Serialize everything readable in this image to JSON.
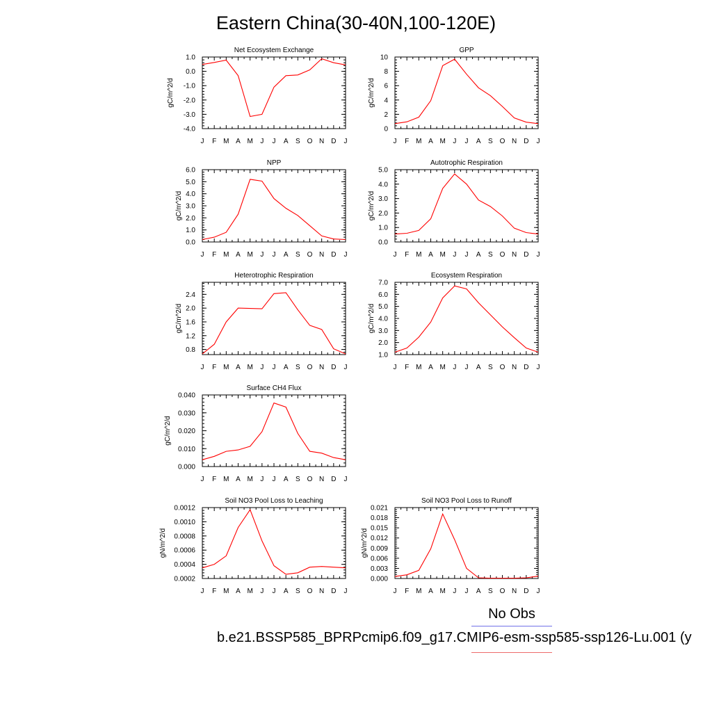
{
  "page": {
    "title": "Eastern China(30-40N,100-120E)",
    "legend": [
      {
        "label": "No Obs",
        "color": "#7070e8"
      },
      {
        "label": "b.e21.BSSP585_BPRPcmip6.f09_g17.CMIP6-esm-ssp585-ssp126-Lu.001 (y",
        "color": "#ee6a6a"
      }
    ]
  },
  "chart_data": [
    {
      "type": "line",
      "title": "Net Ecosystem Exchange",
      "ylabel": "gC/m^2/d",
      "categories": [
        "J",
        "F",
        "M",
        "A",
        "M",
        "J",
        "J",
        "A",
        "S",
        "O",
        "N",
        "D",
        "J"
      ],
      "ylim": [
        -4.0,
        1.0
      ],
      "yticks": [
        -4.0,
        -3.0,
        -2.0,
        -1.0,
        0.0,
        1.0
      ],
      "ytick_labels": [
        "-4.0",
        "-3.0",
        "-2.0",
        "-1.0",
        "0.0",
        "1.0"
      ],
      "series": [
        {
          "color": "#ff0000",
          "values": [
            0.48,
            0.62,
            0.78,
            -0.3,
            -3.15,
            -3.0,
            -1.1,
            -0.3,
            -0.25,
            0.1,
            0.88,
            0.6,
            0.45
          ]
        }
      ]
    },
    {
      "type": "line",
      "title": "GPP",
      "ylabel": "gC/m^2/d",
      "categories": [
        "J",
        "F",
        "M",
        "A",
        "M",
        "J",
        "J",
        "A",
        "S",
        "O",
        "N",
        "D",
        "J"
      ],
      "ylim": [
        0,
        10
      ],
      "yticks": [
        0,
        2,
        4,
        6,
        8,
        10
      ],
      "ytick_labels": [
        "0",
        "2",
        "4",
        "6",
        "8",
        "10"
      ],
      "series": [
        {
          "color": "#ff0000",
          "values": [
            0.7,
            0.95,
            1.6,
            3.9,
            8.8,
            9.7,
            7.6,
            5.7,
            4.6,
            3.1,
            1.5,
            0.9,
            0.7
          ]
        }
      ]
    },
    {
      "type": "line",
      "title": "NPP",
      "ylabel": "gC/m^2/d",
      "categories": [
        "J",
        "F",
        "M",
        "A",
        "M",
        "J",
        "J",
        "A",
        "S",
        "O",
        "N",
        "D",
        "J"
      ],
      "ylim": [
        0,
        6.0
      ],
      "yticks": [
        0,
        1,
        2,
        3,
        4,
        5,
        6
      ],
      "ytick_labels": [
        "0.0",
        "1.0",
        "2.0",
        "3.0",
        "4.0",
        "5.0",
        "6.0"
      ],
      "series": [
        {
          "color": "#ff0000",
          "values": [
            0.2,
            0.4,
            0.8,
            2.3,
            5.2,
            5.05,
            3.6,
            2.8,
            2.2,
            1.35,
            0.5,
            0.25,
            0.2
          ]
        }
      ]
    },
    {
      "type": "line",
      "title": "Autotrophic Respiration",
      "ylabel": "gC/m^2/d",
      "categories": [
        "J",
        "F",
        "M",
        "A",
        "M",
        "J",
        "J",
        "A",
        "S",
        "O",
        "N",
        "D",
        "J"
      ],
      "ylim": [
        0,
        5.0
      ],
      "yticks": [
        0,
        1,
        2,
        3,
        4,
        5
      ],
      "ytick_labels": [
        "0.0",
        "1.0",
        "2.0",
        "3.0",
        "4.0",
        "5.0"
      ],
      "series": [
        {
          "color": "#ff0000",
          "values": [
            0.55,
            0.6,
            0.8,
            1.6,
            3.7,
            4.7,
            4.0,
            2.9,
            2.45,
            1.8,
            0.95,
            0.65,
            0.55
          ]
        }
      ]
    },
    {
      "type": "line",
      "title": "Heterotrophic Respiration",
      "ylabel": "gC/m^2/d",
      "categories": [
        "J",
        "F",
        "M",
        "A",
        "M",
        "J",
        "J",
        "A",
        "S",
        "O",
        "N",
        "D",
        "J"
      ],
      "ylim": [
        0.65,
        2.75
      ],
      "yticks": [
        0.8,
        1.2,
        1.6,
        2.0,
        2.4
      ],
      "ytick_labels": [
        "0.8",
        "1.2",
        "1.6",
        "2.0",
        "2.4"
      ],
      "series": [
        {
          "color": "#ff0000",
          "values": [
            0.67,
            0.95,
            1.6,
            2.0,
            1.99,
            1.98,
            2.42,
            2.45,
            1.95,
            1.5,
            1.38,
            0.82,
            0.67
          ]
        }
      ]
    },
    {
      "type": "line",
      "title": "Ecosystem Respiration",
      "ylabel": "gC/m^2/d",
      "categories": [
        "J",
        "F",
        "M",
        "A",
        "M",
        "J",
        "J",
        "A",
        "S",
        "O",
        "N",
        "D",
        "J"
      ],
      "ylim": [
        1.0,
        7.0
      ],
      "yticks": [
        1,
        2,
        3,
        4,
        5,
        6,
        7
      ],
      "ytick_labels": [
        "1.0",
        "2.0",
        "3.0",
        "4.0",
        "5.0",
        "6.0",
        "7.0"
      ],
      "series": [
        {
          "color": "#ff0000",
          "values": [
            1.2,
            1.55,
            2.45,
            3.7,
            5.7,
            6.7,
            6.45,
            5.3,
            4.3,
            3.3,
            2.4,
            1.55,
            1.2
          ]
        }
      ]
    },
    {
      "type": "line",
      "title": "Surface CH4 Flux",
      "ylabel": "gC/m^2/d",
      "categories": [
        "J",
        "F",
        "M",
        "A",
        "M",
        "J",
        "J",
        "A",
        "S",
        "O",
        "N",
        "D",
        "J"
      ],
      "ylim": [
        0,
        0.04
      ],
      "yticks": [
        0,
        0.01,
        0.02,
        0.03,
        0.04
      ],
      "ytick_labels": [
        "0.000",
        "0.010",
        "0.020",
        "0.030",
        "0.040"
      ],
      "series": [
        {
          "color": "#ff0000",
          "values": [
            0.0038,
            0.0057,
            0.0085,
            0.0093,
            0.0113,
            0.0195,
            0.0355,
            0.0332,
            0.0185,
            0.0085,
            0.0075,
            0.005,
            0.0038
          ]
        }
      ]
    },
    {
      "type": "line",
      "title": "Soil NO3 Pool Loss to Leaching",
      "ylabel": "gN/m^2/d",
      "categories": [
        "J",
        "F",
        "M",
        "A",
        "M",
        "J",
        "J",
        "A",
        "S",
        "O",
        "N",
        "D",
        "J"
      ],
      "ylim": [
        0.0002,
        0.0012
      ],
      "yticks": [
        0.0002,
        0.0004,
        0.0006,
        0.0008,
        0.001,
        0.0012
      ],
      "ytick_labels": [
        "0.0002",
        "0.0004",
        "0.0006",
        "0.0008",
        "0.0010",
        "0.0012"
      ],
      "series": [
        {
          "color": "#ff0000",
          "values": [
            0.00035,
            0.0004,
            0.00052,
            0.00092,
            0.00117,
            0.00073,
            0.00038,
            0.00026,
            0.00028,
            0.00036,
            0.00037,
            0.00036,
            0.00035
          ]
        }
      ]
    },
    {
      "type": "line",
      "title": "Soil NO3 Pool Loss to Runoff",
      "ylabel": "gN/m^2/d",
      "categories": [
        "J",
        "F",
        "M",
        "A",
        "M",
        "J",
        "J",
        "A",
        "S",
        "O",
        "N",
        "D",
        "J"
      ],
      "ylim": [
        0,
        0.021
      ],
      "yticks": [
        0,
        0.003,
        0.006,
        0.009,
        0.012,
        0.015,
        0.018,
        0.021
      ],
      "ytick_labels": [
        "0.000",
        "0.003",
        "0.006",
        "0.009",
        "0.012",
        "0.015",
        "0.018",
        "0.021"
      ],
      "series": [
        {
          "color": "#ff0000",
          "values": [
            0.0006,
            0.0011,
            0.0024,
            0.0088,
            0.0191,
            0.0115,
            0.003,
            0.0002,
            0.0001,
            0.0001,
            0.0001,
            0.0002,
            0.0007
          ]
        }
      ]
    }
  ]
}
